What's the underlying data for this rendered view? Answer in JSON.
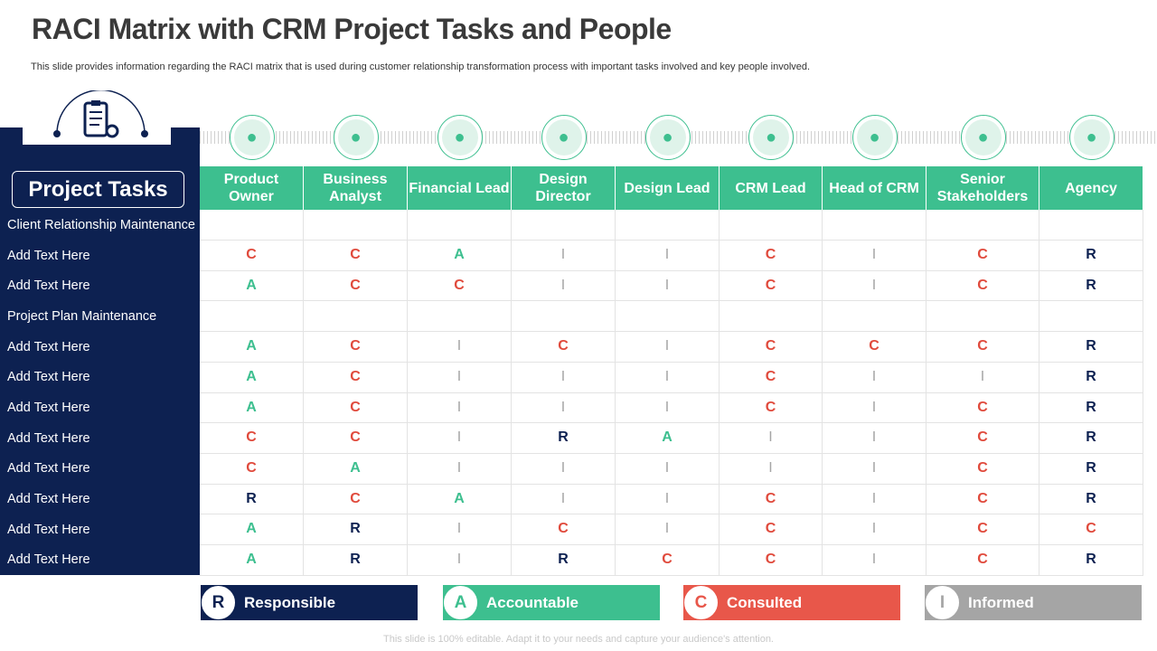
{
  "title": "RACI Matrix with CRM Project Tasks and People",
  "subtitle": "This slide provides information regarding the RACI  matrix that is used during customer relationship transformation process with important tasks involved and key people  involved.",
  "tasks_header": "Project Tasks",
  "colors": {
    "navy": "#0d2151",
    "R": "#0d2151",
    "A": "#3dbf8f",
    "C": "#e04a3c",
    "I": "#a5a5a5"
  },
  "columns": [
    {
      "label": "Product Owner",
      "icon": "person-box-icon"
    },
    {
      "label": "Business Analyst",
      "icon": "chart-person-icon"
    },
    {
      "label": "Financial Lead",
      "icon": "team-network-icon"
    },
    {
      "label": "Design Director",
      "icon": "engineer-icon"
    },
    {
      "label": "Design Lead",
      "icon": "monitor-icon"
    },
    {
      "label": "CRM Lead",
      "icon": "businessman-icon"
    },
    {
      "label": "Head of CRM",
      "icon": "laptop-network-icon"
    },
    {
      "label": "Senior Stakeholders",
      "icon": "meeting-icon"
    },
    {
      "label": "Agency",
      "icon": "agency-board-icon"
    }
  ],
  "rows": [
    {
      "task": "Client Relationship Maintenance",
      "values": [
        "",
        "",
        "",
        "",
        "",
        "",
        "",
        "",
        ""
      ]
    },
    {
      "task": "Add Text Here",
      "values": [
        "C",
        "C",
        "A",
        "I",
        "I",
        "C",
        "I",
        "C",
        "R"
      ]
    },
    {
      "task": "Add Text Here",
      "values": [
        "A",
        "C",
        "C",
        "I",
        "I",
        "C",
        "I",
        "C",
        "R"
      ]
    },
    {
      "task": "Project Plan Maintenance",
      "values": [
        "",
        "",
        "",
        "",
        "",
        "",
        "",
        "",
        ""
      ]
    },
    {
      "task": "Add Text Here",
      "values": [
        "A",
        "C",
        "I",
        "C",
        "I",
        "C",
        "C",
        "C",
        "R"
      ]
    },
    {
      "task": "Add Text Here",
      "values": [
        "A",
        "C",
        "I",
        "I",
        "I",
        "C",
        "I",
        "I",
        "R"
      ]
    },
    {
      "task": "Add Text Here",
      "values": [
        "A",
        "C",
        "I",
        "I",
        "I",
        "C",
        "I",
        "C",
        "R"
      ]
    },
    {
      "task": "Add Text Here",
      "values": [
        "C",
        "C",
        "I",
        "R",
        "A",
        "I",
        "I",
        "C",
        "R"
      ]
    },
    {
      "task": "Add Text Here",
      "values": [
        "C",
        "A",
        "I",
        "I",
        "I",
        "I",
        "I",
        "C",
        "R"
      ]
    },
    {
      "task": "Add Text Here",
      "values": [
        "R",
        "C",
        "A",
        "I",
        "I",
        "C",
        "I",
        "C",
        "R"
      ]
    },
    {
      "task": "Add Text Here",
      "values": [
        "A",
        "R",
        "I",
        "C",
        "I",
        "C",
        "I",
        "C",
        "C"
      ]
    },
    {
      "task": "Add Text Here",
      "values": [
        "A",
        "R",
        "I",
        "R",
        "C",
        "C",
        "I",
        "C",
        "R"
      ]
    }
  ],
  "legend": [
    {
      "letter": "R",
      "label": "Responsible",
      "color": "#0d2151"
    },
    {
      "letter": "A",
      "label": "Accountable",
      "color": "#3dbf8f"
    },
    {
      "letter": "C",
      "label": "Consulted",
      "color": "#e8574a"
    },
    {
      "letter": "I",
      "label": "Informed",
      "color": "#a5a5a5"
    }
  ],
  "footer": "This slide is 100% editable. Adapt it to your needs and capture your audience's attention."
}
